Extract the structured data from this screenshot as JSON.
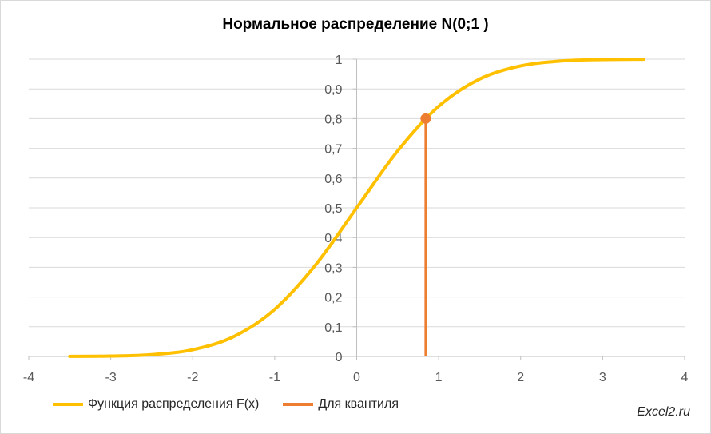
{
  "chart_data": {
    "type": "line",
    "title": "Нормальное распределение N(0;1 )",
    "xlim": [
      -4,
      4
    ],
    "ylim": [
      0,
      1
    ],
    "x_ticks": [
      "-4",
      "-3",
      "-2",
      "-1",
      "0",
      "1",
      "2",
      "3",
      "4"
    ],
    "y_ticks": [
      "0",
      "0,1",
      "0,2",
      "0,3",
      "0,4",
      "0,5",
      "0,6",
      "0,7",
      "0,8",
      "0,9",
      "1"
    ],
    "grid": "horizontal",
    "legend_position": "bottom",
    "series": [
      {
        "name": "Функция распределения F(x)",
        "color": "#ffc000",
        "x": [
          -3.5,
          -3.0,
          -2.5,
          -2.0,
          -1.5,
          -1.0,
          -0.5,
          0.0,
          0.5,
          1.0,
          1.5,
          2.0,
          2.5,
          3.0,
          3.5
        ],
        "y": [
          0.0002,
          0.0013,
          0.0062,
          0.0228,
          0.0668,
          0.1587,
          0.3085,
          0.5,
          0.6915,
          0.8413,
          0.9332,
          0.9772,
          0.9938,
          0.9987,
          0.9998
        ]
      },
      {
        "name": "Для квантиля",
        "color": "#ed7d31",
        "x": [
          0.8416,
          0.8416
        ],
        "y": [
          0,
          0.8
        ],
        "marker_point": [
          0.8416,
          0.8
        ]
      }
    ]
  },
  "watermark": "Excel2.ru"
}
